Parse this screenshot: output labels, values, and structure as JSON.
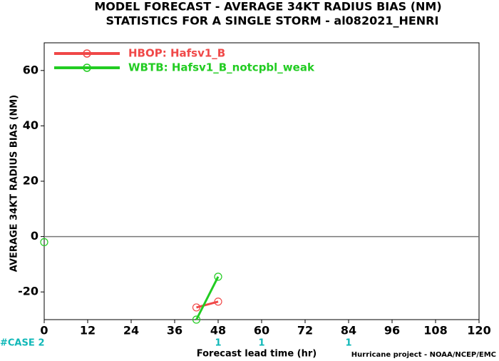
{
  "chart_data": {
    "type": "line",
    "title": "MODEL FORECAST - AVERAGE 34KT RADIUS BIAS (NM)",
    "subtitle": "STATISTICS FOR A SINGLE STORM - al082021_HENRI",
    "y_label": "AVERAGE 34KT RADIUS BIAS (NM)",
    "x_label": "Forecast lead time (hr)",
    "footer": "Hurricane project - NOAA/NCEP/EMC",
    "x": [
      0,
      6,
      12,
      18,
      24,
      30,
      36,
      42,
      48
    ],
    "series": [
      {
        "name": "HBOP: Hafsv1_B",
        "color": "#f04848",
        "values": [
          null,
          null,
          null,
          null,
          null,
          null,
          null,
          -25.6,
          -23.5
        ]
      },
      {
        "name": "WBTB: Hafsv1_B_notcpbl_weak",
        "color": "#22cc22",
        "values": [
          -2,
          null,
          null,
          null,
          null,
          null,
          null,
          -30,
          -14.5
        ]
      }
    ],
    "xlim": [
      0,
      120
    ],
    "xticks": [
      0,
      12,
      24,
      36,
      48,
      60,
      72,
      84,
      96,
      108,
      120
    ],
    "ylim": [
      -30,
      70
    ],
    "yticks": [
      -20,
      0,
      20,
      40,
      60
    ],
    "zero_line": true,
    "legend": "upper left",
    "cases": {
      "label": "#CASE",
      "x": [
        0,
        48,
        60,
        84
      ],
      "values": [
        2,
        1,
        1,
        1
      ]
    }
  }
}
